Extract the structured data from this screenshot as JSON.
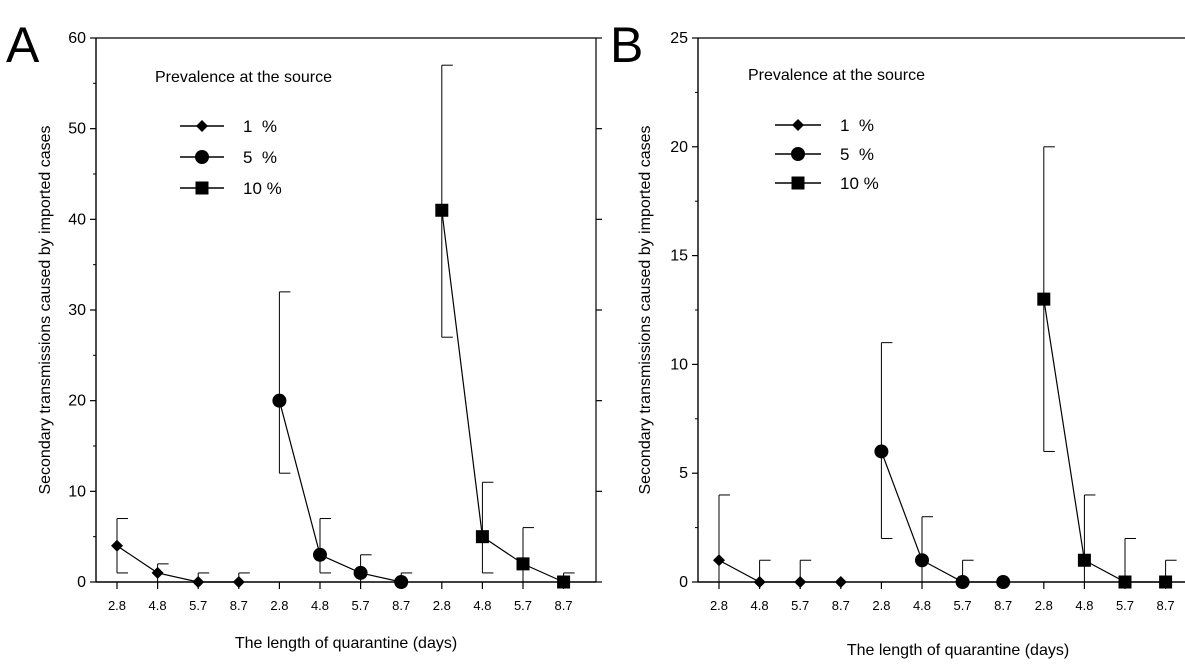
{
  "chart_data": [
    {
      "panel_label": "A",
      "type": "line",
      "ylabel": "Secondary transmissions caused by imported cases",
      "xlabel": "The length of quarantine (days)",
      "ylim": [
        0,
        60
      ],
      "yticks": [
        0,
        10,
        20,
        30,
        40,
        50,
        60
      ],
      "x_tick_labels": [
        "2.8",
        "4.8",
        "5.7",
        "8.7",
        "2.8",
        "4.8",
        "5.7",
        "8.7",
        "2.8",
        "4.8",
        "5.7",
        "8.7"
      ],
      "legend_title": "Prevalence at the source",
      "legend_position": "top-left",
      "series": [
        {
          "name": "1  %",
          "marker": "diamond",
          "x": [
            "2.8",
            "4.8",
            "5.7",
            "8.7"
          ],
          "values": [
            4,
            1,
            0,
            0
          ],
          "err_low": [
            1,
            0,
            0,
            0
          ],
          "err_high": [
            7,
            2,
            1,
            1
          ]
        },
        {
          "name": "5  %",
          "marker": "circle",
          "x": [
            "2.8",
            "4.8",
            "5.7",
            "8.7"
          ],
          "values": [
            20,
            3,
            1,
            0
          ],
          "err_low": [
            12,
            1,
            0,
            0
          ],
          "err_high": [
            32,
            7,
            3,
            1
          ]
        },
        {
          "name": "10 %",
          "marker": "square",
          "x": [
            "2.8",
            "4.8",
            "5.7",
            "8.7"
          ],
          "values": [
            41,
            5,
            2,
            0
          ],
          "err_low": [
            27,
            1,
            0,
            0
          ],
          "err_high": [
            57,
            11,
            6,
            1
          ]
        }
      ]
    },
    {
      "panel_label": "B",
      "type": "line",
      "ylabel": "Secondary transmissions caused by imported cases",
      "xlabel": "The length of quarantine (days)",
      "ylim": [
        0,
        25
      ],
      "yticks": [
        0,
        5,
        10,
        15,
        20,
        25
      ],
      "x_tick_labels": [
        "2.8",
        "4.8",
        "5.7",
        "8.7",
        "2.8",
        "4.8",
        "5.7",
        "8.7",
        "2.8",
        "4.8",
        "5.7",
        "8.7"
      ],
      "legend_title": "Prevalence at the source",
      "legend_position": "top-left",
      "series": [
        {
          "name": "1  %",
          "marker": "diamond",
          "x": [
            "2.8",
            "4.8",
            "5.7",
            "8.7"
          ],
          "values": [
            1,
            0,
            0,
            0
          ],
          "err_low": [
            0,
            0,
            0,
            0
          ],
          "err_high": [
            4,
            1,
            1,
            0
          ]
        },
        {
          "name": "5  %",
          "marker": "circle",
          "x": [
            "2.8",
            "4.8",
            "5.7",
            "8.7"
          ],
          "values": [
            6,
            1,
            0,
            0
          ],
          "err_low": [
            2,
            0,
            0,
            0
          ],
          "err_high": [
            11,
            3,
            1,
            0
          ]
        },
        {
          "name": "10 %",
          "marker": "square",
          "x": [
            "2.8",
            "4.8",
            "5.7",
            "8.7"
          ],
          "values": [
            13,
            1,
            0,
            0
          ],
          "err_low": [
            6,
            0,
            0,
            0
          ],
          "err_high": [
            20,
            4,
            2,
            1
          ]
        }
      ]
    }
  ]
}
